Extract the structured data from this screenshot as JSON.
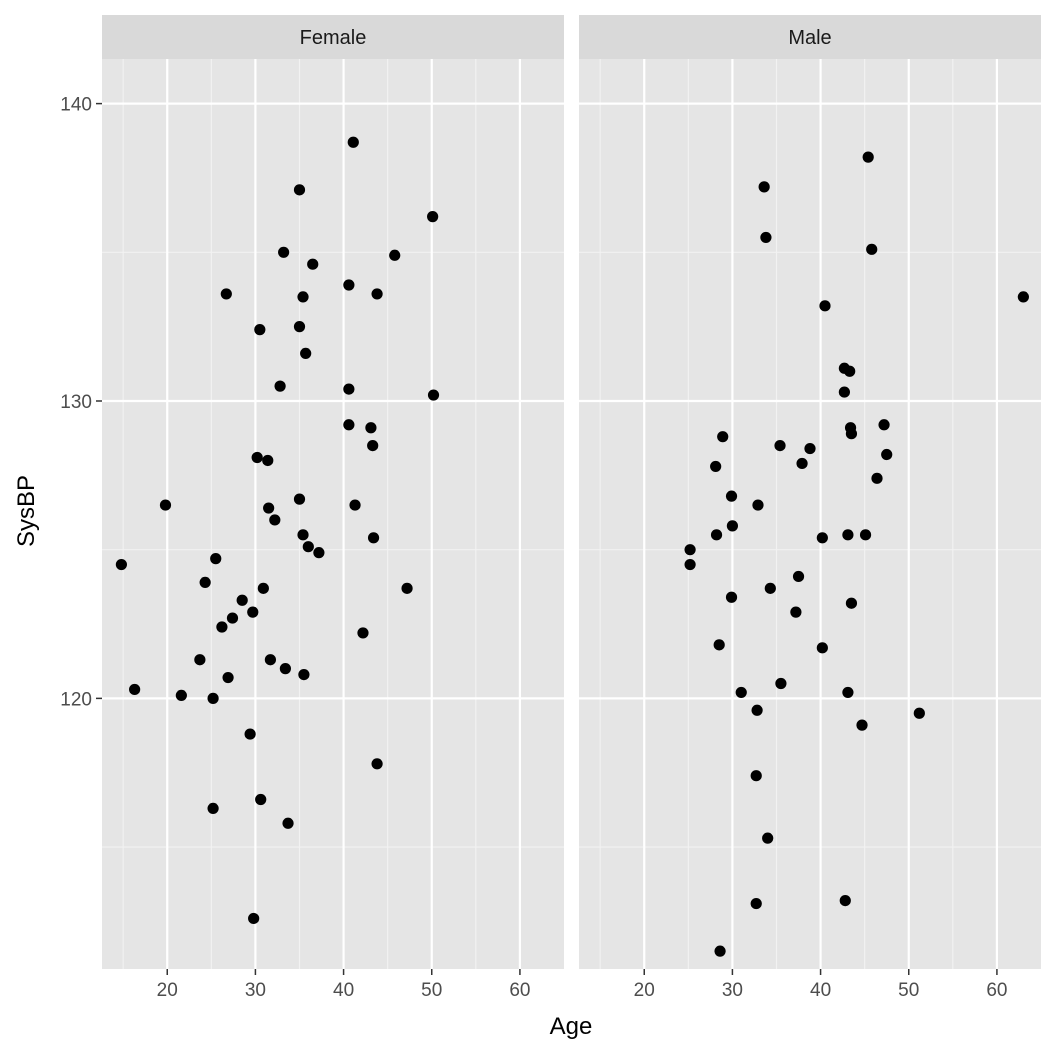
{
  "chart_data": {
    "type": "scatter",
    "facet": "sex",
    "xlabel": "Age",
    "ylabel": "SysBP",
    "xlim": [
      12.6,
      65
    ],
    "ylim": [
      110.9,
      141.5
    ],
    "x_ticks": [
      20,
      30,
      40,
      50,
      60
    ],
    "y_ticks": [
      120,
      130,
      140
    ],
    "grid": true,
    "point_color": "#000000",
    "panel_background": "#e5e5e5",
    "strip_background": "#d9d9d9",
    "panels": [
      {
        "name": "Female",
        "points": [
          {
            "x": 14.8,
            "y": 124.5
          },
          {
            "x": 16.3,
            "y": 120.3
          },
          {
            "x": 19.8,
            "y": 126.5
          },
          {
            "x": 21.6,
            "y": 120.1
          },
          {
            "x": 23.7,
            "y": 121.3
          },
          {
            "x": 24.3,
            "y": 123.9
          },
          {
            "x": 25.2,
            "y": 120.0
          },
          {
            "x": 25.2,
            "y": 116.3
          },
          {
            "x": 25.5,
            "y": 124.7
          },
          {
            "x": 26.2,
            "y": 122.4
          },
          {
            "x": 26.7,
            "y": 133.6
          },
          {
            "x": 26.9,
            "y": 120.7
          },
          {
            "x": 27.4,
            "y": 122.7
          },
          {
            "x": 28.5,
            "y": 123.3
          },
          {
            "x": 29.4,
            "y": 118.8
          },
          {
            "x": 29.7,
            "y": 122.9
          },
          {
            "x": 29.8,
            "y": 112.6
          },
          {
            "x": 30.2,
            "y": 128.1
          },
          {
            "x": 30.5,
            "y": 132.4
          },
          {
            "x": 30.6,
            "y": 116.6
          },
          {
            "x": 30.9,
            "y": 123.7
          },
          {
            "x": 31.4,
            "y": 128.0
          },
          {
            "x": 31.5,
            "y": 126.4
          },
          {
            "x": 31.7,
            "y": 121.3
          },
          {
            "x": 32.2,
            "y": 126.0
          },
          {
            "x": 32.8,
            "y": 130.5
          },
          {
            "x": 33.2,
            "y": 135.0
          },
          {
            "x": 33.4,
            "y": 121.0
          },
          {
            "x": 33.7,
            "y": 115.8
          },
          {
            "x": 35.0,
            "y": 137.1
          },
          {
            "x": 35.0,
            "y": 132.5
          },
          {
            "x": 35.0,
            "y": 126.7
          },
          {
            "x": 35.4,
            "y": 133.5
          },
          {
            "x": 35.4,
            "y": 125.5
          },
          {
            "x": 35.5,
            "y": 120.8
          },
          {
            "x": 35.7,
            "y": 131.6
          },
          {
            "x": 36.0,
            "y": 125.1
          },
          {
            "x": 36.5,
            "y": 134.6
          },
          {
            "x": 37.2,
            "y": 124.9
          },
          {
            "x": 40.6,
            "y": 133.9
          },
          {
            "x": 40.6,
            "y": 130.4
          },
          {
            "x": 40.6,
            "y": 129.2
          },
          {
            "x": 41.1,
            "y": 138.7
          },
          {
            "x": 41.3,
            "y": 126.5
          },
          {
            "x": 42.2,
            "y": 122.2
          },
          {
            "x": 43.1,
            "y": 129.1
          },
          {
            "x": 43.3,
            "y": 128.5
          },
          {
            "x": 43.4,
            "y": 125.4
          },
          {
            "x": 43.8,
            "y": 133.6
          },
          {
            "x": 43.8,
            "y": 117.8
          },
          {
            "x": 45.8,
            "y": 134.9
          },
          {
            "x": 47.2,
            "y": 123.7
          },
          {
            "x": 50.1,
            "y": 136.2
          },
          {
            "x": 50.2,
            "y": 130.2
          }
        ]
      },
      {
        "name": "Male",
        "points": [
          {
            "x": 25.2,
            "y": 125.0
          },
          {
            "x": 25.2,
            "y": 124.5
          },
          {
            "x": 28.1,
            "y": 127.8
          },
          {
            "x": 28.2,
            "y": 125.5
          },
          {
            "x": 28.5,
            "y": 121.8
          },
          {
            "x": 28.6,
            "y": 111.5
          },
          {
            "x": 28.9,
            "y": 128.8
          },
          {
            "x": 29.9,
            "y": 126.8
          },
          {
            "x": 29.9,
            "y": 123.4
          },
          {
            "x": 30.0,
            "y": 125.8
          },
          {
            "x": 31.0,
            "y": 120.2
          },
          {
            "x": 32.7,
            "y": 117.4
          },
          {
            "x": 32.7,
            "y": 113.1
          },
          {
            "x": 32.8,
            "y": 119.6
          },
          {
            "x": 32.9,
            "y": 126.5
          },
          {
            "x": 33.6,
            "y": 137.2
          },
          {
            "x": 33.8,
            "y": 135.5
          },
          {
            "x": 34.0,
            "y": 115.3
          },
          {
            "x": 34.3,
            "y": 123.7
          },
          {
            "x": 35.4,
            "y": 128.5
          },
          {
            "x": 35.5,
            "y": 120.5
          },
          {
            "x": 37.2,
            "y": 122.9
          },
          {
            "x": 37.5,
            "y": 124.1
          },
          {
            "x": 37.9,
            "y": 127.9
          },
          {
            "x": 38.8,
            "y": 128.4
          },
          {
            "x": 40.2,
            "y": 125.4
          },
          {
            "x": 40.2,
            "y": 121.7
          },
          {
            "x": 40.5,
            "y": 133.2
          },
          {
            "x": 42.7,
            "y": 131.1
          },
          {
            "x": 42.7,
            "y": 130.3
          },
          {
            "x": 42.8,
            "y": 113.2
          },
          {
            "x": 43.1,
            "y": 125.5
          },
          {
            "x": 43.1,
            "y": 120.2
          },
          {
            "x": 43.3,
            "y": 131.0
          },
          {
            "x": 43.4,
            "y": 129.1
          },
          {
            "x": 43.5,
            "y": 128.9
          },
          {
            "x": 43.5,
            "y": 123.2
          },
          {
            "x": 44.7,
            "y": 119.1
          },
          {
            "x": 45.1,
            "y": 125.5
          },
          {
            "x": 45.4,
            "y": 138.2
          },
          {
            "x": 45.8,
            "y": 135.1
          },
          {
            "x": 46.4,
            "y": 127.4
          },
          {
            "x": 47.2,
            "y": 129.2
          },
          {
            "x": 47.5,
            "y": 128.2
          },
          {
            "x": 51.2,
            "y": 119.5
          },
          {
            "x": 63.0,
            "y": 133.5
          }
        ]
      }
    ]
  }
}
